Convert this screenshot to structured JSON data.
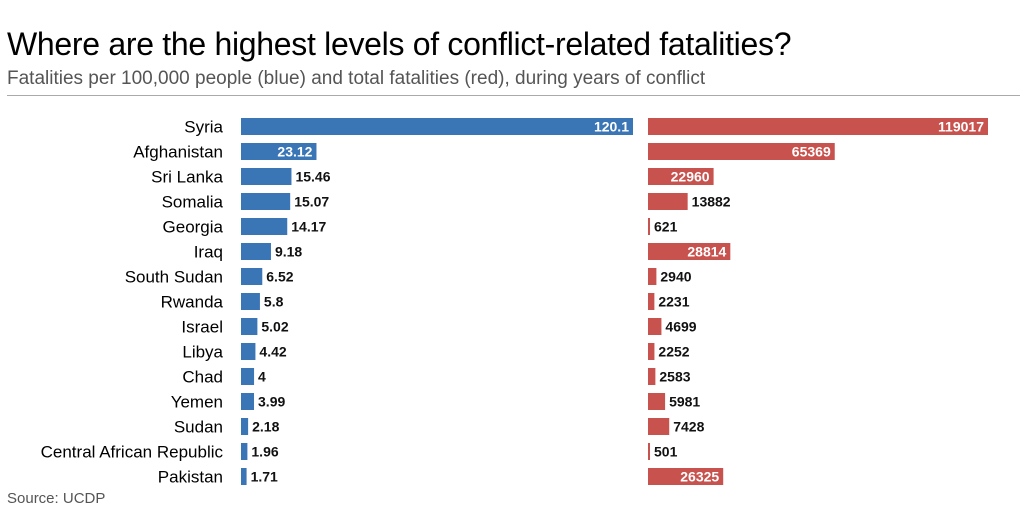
{
  "chart_data": {
    "type": "bar",
    "title": "Where are the highest levels of conflict-related fatalities?",
    "subtitle": "Fatalities per 100,000 people (blue) and total fatalities (red), during years of conflict",
    "source": "Source: UCDP",
    "categories": [
      "Syria",
      "Afghanistan",
      "Sri Lanka",
      "Somalia",
      "Georgia",
      "Iraq",
      "South Sudan",
      "Rwanda",
      "Israel",
      "Libya",
      "Chad",
      "Yemen",
      "Sudan",
      "Central African Republic",
      "Pakistan"
    ],
    "series": [
      {
        "name": "Fatalities per 100,000 people",
        "color": "#3a75b5",
        "values": [
          120.1,
          23.12,
          15.46,
          15.07,
          14.17,
          9.18,
          6.52,
          5.8,
          5.02,
          4.42,
          4,
          3.99,
          2.18,
          1.96,
          1.71
        ],
        "labels": [
          "120.1",
          "23.12",
          "15.46",
          "15.07",
          "14.17",
          "9.18",
          "6.52",
          "5.8",
          "5.02",
          "4.42",
          "4",
          "3.99",
          "2.18",
          "1.96",
          "1.71"
        ],
        "max": 120.1
      },
      {
        "name": "Total fatalities",
        "color": "#c8524e",
        "values": [
          119017,
          65369,
          22960,
          13882,
          621,
          28814,
          2940,
          2231,
          4699,
          2252,
          2583,
          5981,
          7428,
          501,
          26325
        ],
        "labels": [
          "119017",
          "65369",
          "22960",
          "13882",
          "621",
          "28814",
          "2940",
          "2231",
          "4699",
          "2252",
          "2583",
          "5981",
          "7428",
          "501",
          "26325"
        ],
        "max": 119017
      }
    ]
  }
}
